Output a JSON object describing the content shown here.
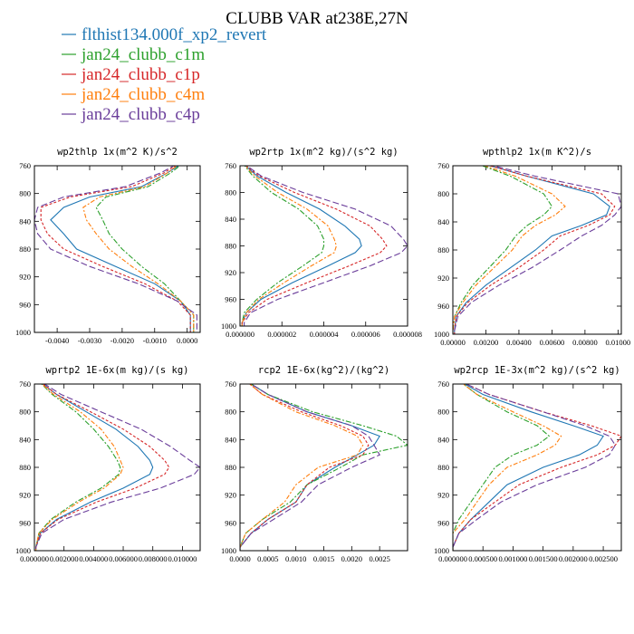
{
  "figure": {
    "title": "CLUBB VAR at238E,27N"
  },
  "legend": [
    {
      "label": "flthist134.000f_xp2_revert",
      "color": "#1f77b4"
    },
    {
      "label": "jan24_clubb_c1m",
      "color": "#2ca02c"
    },
    {
      "label": "jan24_clubb_c1p",
      "color": "#d62728"
    },
    {
      "label": "jan24_clubb_c4m",
      "color": "#ff7f0e"
    },
    {
      "label": "jan24_clubb_c4p",
      "color": "#6a3d9a"
    }
  ],
  "chart_data": [
    {
      "type": "line",
      "title": "wp2thlp  1x(m^2 K)/s^2",
      "xlim": [
        -0.0047,
        0.0004
      ],
      "ylim": [
        760,
        1000
      ],
      "y_reversed": true,
      "yticks": [
        760,
        800,
        840,
        880,
        920,
        960,
        1000
      ],
      "xticks": [
        -0.004,
        -0.003,
        -0.002,
        -0.001,
        0.0
      ],
      "xtick_labels": [
        "-0.0040",
        "-0.0030",
        "-0.0020",
        "-0.0010",
        "0.0000"
      ],
      "y": [
        752,
        770,
        790,
        805,
        820,
        838,
        858,
        880,
        905,
        930,
        955,
        975,
        995,
        1000
      ],
      "series": [
        {
          "values": [
            -0.0,
            -0.0006,
            -0.0014,
            -0.003,
            -0.0038,
            -0.0042,
            -0.0038,
            -0.0034,
            -0.0022,
            -0.001,
            -0.0002,
            0.0001,
            0.0001,
            0.0001
          ]
        },
        {
          "values": [
            -0.0,
            -0.0005,
            -0.0012,
            -0.0025,
            -0.0028,
            -0.0026,
            -0.0024,
            -0.002,
            -0.0014,
            -0.0007,
            -0.0002,
            0.0002,
            0.0002,
            0.0002
          ]
        },
        {
          "values": [
            -0.0001,
            -0.0007,
            -0.0017,
            -0.0036,
            -0.0045,
            -0.0045,
            -0.0043,
            -0.0038,
            -0.0026,
            -0.0013,
            -0.0003,
            0.0001,
            0.0001,
            0.0001
          ]
        },
        {
          "values": [
            -0.0001,
            -0.0006,
            -0.0013,
            -0.0027,
            -0.0032,
            -0.0031,
            -0.0028,
            -0.0024,
            -0.0017,
            -0.0009,
            -0.0002,
            0.0002,
            0.0002,
            0.0002
          ]
        },
        {
          "values": [
            -0.0001,
            -0.0008,
            -0.0019,
            -0.0038,
            -0.0046,
            -0.0047,
            -0.0046,
            -0.0042,
            -0.003,
            -0.0015,
            -0.0003,
            0.0003,
            0.0003,
            0.0003
          ]
        }
      ]
    },
    {
      "type": "line",
      "title": "wp2rtp  1x(m^2 kg)/(s^2 kg)",
      "xlim": [
        0,
        8e-06
      ],
      "ylim": [
        760,
        1000
      ],
      "y_reversed": true,
      "yticks": [
        760,
        800,
        840,
        880,
        920,
        960,
        1000
      ],
      "xticks": [
        0,
        2e-06,
        4e-06,
        6e-06,
        8e-06
      ],
      "xtick_labels": [
        "0.000000",
        "0.000002",
        "0.000004",
        "0.000006",
        "0.000008"
      ],
      "y": [
        755,
        775,
        800,
        825,
        850,
        870,
        880,
        890,
        910,
        935,
        960,
        980,
        995,
        1000
      ],
      "series": [
        {
          "values": [
            1e-07,
            8e-07,
            2.2e-06,
            3.8e-06,
            5e-06,
            5.7e-06,
            5.8e-06,
            5.5e-06,
            4.2e-06,
            2.5e-06,
            1e-06,
            3e-07,
            1e-07,
            1e-07
          ]
        },
        {
          "values": [
            1e-07,
            6e-07,
            1.5e-06,
            2.8e-06,
            3.7e-06,
            4e-06,
            4e-06,
            3.9e-06,
            3e-06,
            1.8e-06,
            8e-07,
            2e-07,
            1e-07,
            1e-07
          ]
        },
        {
          "values": [
            1e-07,
            9e-07,
            2.6e-06,
            4.6e-06,
            6.2e-06,
            6.8e-06,
            7e-06,
            6.7e-06,
            5.2e-06,
            3.2e-06,
            1.3e-06,
            4e-07,
            1e-07,
            1e-07
          ]
        },
        {
          "values": [
            1e-07,
            7e-07,
            1.8e-06,
            3.2e-06,
            4.2e-06,
            4.5e-06,
            4.6e-06,
            4.5e-06,
            3.4e-06,
            2.1e-06,
            9e-07,
            3e-07,
            1e-07,
            1e-07
          ]
        },
        {
          "values": [
            1e-07,
            1e-06,
            3e-06,
            5.5e-06,
            7.2e-06,
            7.8e-06,
            8e-06,
            7.7e-06,
            6.2e-06,
            4e-06,
            1.8e-06,
            5e-07,
            2e-07,
            2e-07
          ]
        }
      ]
    },
    {
      "type": "line",
      "title": "wpthlp2  1x(m K^2)/s",
      "xlim": [
        0,
        0.0102
      ],
      "ylim": [
        760,
        1000
      ],
      "y_reversed": true,
      "yticks": [
        760,
        800,
        840,
        880,
        920,
        960,
        1000
      ],
      "xticks": [
        0,
        0.002,
        0.004,
        0.006,
        0.008,
        0.01
      ],
      "xtick_labels": [
        "0.00000",
        "0.00200",
        "0.00400",
        "0.00600",
        "0.00800",
        "0.01000"
      ],
      "y": [
        755,
        775,
        800,
        818,
        830,
        845,
        860,
        880,
        905,
        930,
        955,
        975,
        995,
        1000
      ],
      "series": [
        {
          "values": [
            0.0015,
            0.0045,
            0.0085,
            0.0095,
            0.0093,
            0.0078,
            0.006,
            0.005,
            0.0035,
            0.002,
            0.0008,
            0.0002,
            0.0001,
            0.0001
          ]
        },
        {
          "values": [
            0.0012,
            0.0035,
            0.0055,
            0.006,
            0.0055,
            0.0045,
            0.0038,
            0.0032,
            0.0022,
            0.0012,
            0.0005,
            0.0001,
            0.0,
            0.0
          ]
        },
        {
          "values": [
            0.0015,
            0.0045,
            0.009,
            0.0098,
            0.0095,
            0.0082,
            0.0065,
            0.0055,
            0.004,
            0.0023,
            0.0009,
            0.0002,
            0.0001,
            0.0001
          ]
        },
        {
          "values": [
            0.0013,
            0.0038,
            0.006,
            0.0068,
            0.0062,
            0.005,
            0.0042,
            0.0036,
            0.0025,
            0.0014,
            0.0006,
            0.0001,
            0.0,
            0.0
          ]
        },
        {
          "values": [
            0.0016,
            0.005,
            0.01,
            0.0102,
            0.0098,
            0.009,
            0.0078,
            0.0065,
            0.0048,
            0.0028,
            0.0011,
            0.0003,
            0.0001,
            0.0001
          ]
        }
      ]
    },
    {
      "type": "line",
      "title": "wprtp2  1E-6x(m kg)/(s kg)",
      "xlim": [
        0,
        0.0112
      ],
      "ylim": [
        760,
        1000
      ],
      "y_reversed": true,
      "yticks": [
        760,
        800,
        840,
        880,
        920,
        960,
        1000
      ],
      "xticks": [
        0,
        0.002,
        0.004,
        0.006,
        0.008,
        0.01
      ],
      "xtick_labels": [
        "0.000000",
        "0.002000",
        "0.004000",
        "0.006000",
        "0.008000",
        "0.010000"
      ],
      "y": [
        752,
        775,
        800,
        825,
        850,
        870,
        880,
        890,
        910,
        930,
        955,
        975,
        995,
        1000
      ],
      "series": [
        {
          "values": [
            0.0001,
            0.0015,
            0.0035,
            0.0055,
            0.007,
            0.0078,
            0.008,
            0.0078,
            0.006,
            0.0038,
            0.0015,
            0.0004,
            0.0001,
            0.0001
          ]
        },
        {
          "values": [
            0.0001,
            0.0012,
            0.0028,
            0.004,
            0.005,
            0.0056,
            0.0058,
            0.0057,
            0.0045,
            0.0028,
            0.0011,
            0.0003,
            0.0001,
            0.0001
          ]
        },
        {
          "values": [
            0.0001,
            0.0015,
            0.0038,
            0.006,
            0.0078,
            0.0088,
            0.0091,
            0.0088,
            0.0068,
            0.0042,
            0.0016,
            0.0004,
            0.0001,
            0.0001
          ]
        },
        {
          "values": [
            0.0001,
            0.0013,
            0.0031,
            0.0045,
            0.0054,
            0.0058,
            0.006,
            0.0058,
            0.0047,
            0.003,
            0.0012,
            0.0003,
            0.0001,
            0.0001
          ]
        },
        {
          "values": [
            0.0001,
            0.0018,
            0.0045,
            0.0072,
            0.0092,
            0.0105,
            0.0112,
            0.0108,
            0.0085,
            0.0052,
            0.002,
            0.0005,
            0.0001,
            0.0001
          ]
        }
      ]
    },
    {
      "type": "line",
      "title": "rcp2  1E-6x(kg^2)/(kg^2)",
      "xlim": [
        0,
        0.003
      ],
      "ylim": [
        760,
        1000
      ],
      "y_reversed": true,
      "yticks": [
        760,
        800,
        840,
        880,
        920,
        960,
        1000
      ],
      "xticks": [
        0,
        0.0005,
        0.001,
        0.0015,
        0.002,
        0.0025
      ],
      "xtick_labels": [
        "0.0000",
        "0.0005",
        "0.0010",
        "0.0015",
        "0.0020",
        "0.0025"
      ],
      "y": [
        755,
        775,
        800,
        820,
        835,
        848,
        862,
        880,
        905,
        930,
        955,
        975,
        995,
        1000
      ],
      "series": [
        {
          "values": [
            0.0001,
            0.0005,
            0.0012,
            0.002,
            0.0025,
            0.0024,
            0.0021,
            0.0017,
            0.0012,
            0.001,
            0.0005,
            0.0002,
            0.0,
            0.0
          ]
        },
        {
          "values": [
            0.0001,
            0.0005,
            0.0013,
            0.0022,
            0.0028,
            0.003,
            0.0022,
            0.0018,
            0.0012,
            0.0009,
            0.0004,
            0.0001,
            0.0,
            0.0
          ]
        },
        {
          "values": [
            0.0001,
            0.0004,
            0.0011,
            0.0018,
            0.0022,
            0.0023,
            0.0022,
            0.0016,
            0.0012,
            0.001,
            0.0005,
            0.0002,
            0.0,
            0.0
          ]
        },
        {
          "values": [
            0.0001,
            0.0004,
            0.001,
            0.0017,
            0.0021,
            0.0022,
            0.0021,
            0.0014,
            0.001,
            0.0008,
            0.0004,
            0.0001,
            0.0,
            0.0
          ]
        },
        {
          "values": [
            0.0001,
            0.0005,
            0.0012,
            0.002,
            0.0023,
            0.0024,
            0.0025,
            0.002,
            0.0014,
            0.0011,
            0.0006,
            0.0002,
            0.0,
            0.0
          ]
        }
      ]
    },
    {
      "type": "line",
      "title": "wp2rcp  1E-3x(m^2 kg)/(s^2 kg)",
      "xlim": [
        0,
        0.0028
      ],
      "ylim": [
        760,
        1000
      ],
      "y_reversed": true,
      "yticks": [
        760,
        800,
        840,
        880,
        920,
        960,
        1000
      ],
      "xticks": [
        0,
        0.0005,
        0.001,
        0.0015,
        0.002,
        0.0025
      ],
      "xtick_labels": [
        "0.000000",
        "0.000500",
        "0.001000",
        "0.001500",
        "0.002000",
        "0.002500"
      ],
      "y": [
        755,
        775,
        800,
        820,
        835,
        848,
        862,
        880,
        905,
        930,
        955,
        975,
        995,
        1000
      ],
      "series": [
        {
          "values": [
            0.0001,
            0.0005,
            0.0013,
            0.002,
            0.0025,
            0.0024,
            0.0021,
            0.0015,
            0.0009,
            0.0006,
            0.0003,
            0.0001,
            0.0,
            0.0
          ]
        },
        {
          "values": [
            0.0001,
            0.0004,
            0.0009,
            0.0014,
            0.0016,
            0.0014,
            0.001,
            0.0007,
            0.0005,
            0.0003,
            0.0001,
            0.0,
            0.0,
            0.0
          ]
        },
        {
          "values": [
            0.0001,
            0.0006,
            0.0015,
            0.0023,
            0.0028,
            0.0027,
            0.0024,
            0.0018,
            0.0011,
            0.0007,
            0.0003,
            0.0001,
            0.0,
            0.0
          ]
        },
        {
          "values": [
            0.0001,
            0.0004,
            0.001,
            0.0015,
            0.0018,
            0.0017,
            0.0014,
            0.0009,
            0.0006,
            0.0004,
            0.0002,
            0.0,
            0.0,
            0.0
          ]
        },
        {
          "values": [
            0.0001,
            0.0006,
            0.0015,
            0.0022,
            0.0026,
            0.0027,
            0.0026,
            0.0022,
            0.0014,
            0.0008,
            0.0004,
            0.0001,
            0.0,
            0.0
          ]
        }
      ]
    }
  ]
}
